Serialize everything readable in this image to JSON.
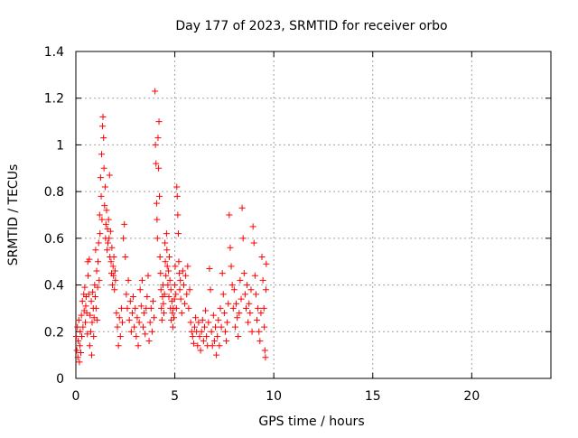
{
  "chart_data": {
    "type": "scatter",
    "title": "Day 177 of 2023, SRMTID for receiver orbo",
    "xlabel": "GPS time / hours",
    "ylabel": "SRMTID / TECUs",
    "xlim": [
      0,
      24
    ],
    "ylim": [
      0,
      1.4
    ],
    "xticks": [
      0,
      5,
      10,
      15,
      20
    ],
    "xtick_labels": [
      "0",
      "5",
      "10",
      "15",
      "20"
    ],
    "yticks": [
      0,
      0.2,
      0.4,
      0.6,
      0.8,
      1.0,
      1.2,
      1.4
    ],
    "ytick_labels": [
      "0",
      "0.2",
      "0.4",
      "0.6",
      "0.8",
      "1",
      "1.2",
      "1.4"
    ],
    "grid": true,
    "marker": "plus",
    "color": "#ff0000",
    "series": [
      {
        "name": "SRMTID",
        "points": [
          [
            0.02,
            0.18
          ],
          [
            0.05,
            0.12
          ],
          [
            0.08,
            0.22
          ],
          [
            0.1,
            0.09
          ],
          [
            0.12,
            0.16
          ],
          [
            0.15,
            0.25
          ],
          [
            0.18,
            0.07
          ],
          [
            0.2,
            0.14
          ],
          [
            0.22,
            0.2
          ],
          [
            0.25,
            0.11
          ],
          [
            0.28,
            0.27
          ],
          [
            0.3,
            0.18
          ],
          [
            0.33,
            0.33
          ],
          [
            0.36,
            0.22
          ],
          [
            0.4,
            0.36
          ],
          [
            0.42,
            0.29
          ],
          [
            0.45,
            0.39
          ],
          [
            0.48,
            0.24
          ],
          [
            0.5,
            0.31
          ],
          [
            0.52,
            0.35
          ],
          [
            0.55,
            0.28
          ],
          [
            0.58,
            0.19
          ],
          [
            0.6,
            0.5
          ],
          [
            0.62,
            0.44
          ],
          [
            0.65,
            0.36
          ],
          [
            0.68,
            0.51
          ],
          [
            0.7,
            0.14
          ],
          [
            0.72,
            0.27
          ],
          [
            0.75,
            0.2
          ],
          [
            0.78,
            0.33
          ],
          [
            0.8,
            0.1
          ],
          [
            0.82,
            0.24
          ],
          [
            0.85,
            0.37
          ],
          [
            0.88,
            0.3
          ],
          [
            0.9,
            0.18
          ],
          [
            0.92,
            0.26
          ],
          [
            0.95,
            0.4
          ],
          [
            0.98,
            0.35
          ],
          [
            1.0,
            0.55
          ],
          [
            1.02,
            0.3
          ],
          [
            1.05,
            0.46
          ],
          [
            1.08,
            0.25
          ],
          [
            1.1,
            0.39
          ],
          [
            1.12,
            0.5
          ],
          [
            1.15,
            0.58
          ],
          [
            1.18,
            0.42
          ],
          [
            1.2,
            0.7
          ],
          [
            1.22,
            0.62
          ],
          [
            1.25,
            0.86
          ],
          [
            1.28,
            0.78
          ],
          [
            1.3,
            0.96
          ],
          [
            1.32,
            0.68
          ],
          [
            1.35,
            1.08
          ],
          [
            1.37,
            1.12
          ],
          [
            1.4,
            1.03
          ],
          [
            1.42,
            0.9
          ],
          [
            1.45,
            0.74
          ],
          [
            1.48,
            0.82
          ],
          [
            1.5,
            0.6
          ],
          [
            1.52,
            0.66
          ],
          [
            1.55,
            0.72
          ],
          [
            1.58,
            0.55
          ],
          [
            1.6,
            0.64
          ],
          [
            1.62,
            0.58
          ],
          [
            1.65,
            0.68
          ],
          [
            1.68,
            0.6
          ],
          [
            1.7,
            0.87
          ],
          [
            1.72,
            0.52
          ],
          [
            1.75,
            0.63
          ],
          [
            1.78,
            0.5
          ],
          [
            1.8,
            0.45
          ],
          [
            1.82,
            0.56
          ],
          [
            1.85,
            0.4
          ],
          [
            1.88,
            0.48
          ],
          [
            1.9,
            0.44
          ],
          [
            1.92,
            0.52
          ],
          [
            1.95,
            0.38
          ],
          [
            1.98,
            0.46
          ],
          [
            2.0,
            0.42
          ],
          [
            2.05,
            0.28
          ],
          [
            2.1,
            0.22
          ],
          [
            2.15,
            0.14
          ],
          [
            2.2,
            0.26
          ],
          [
            2.25,
            0.18
          ],
          [
            2.3,
            0.3
          ],
          [
            2.35,
            0.24
          ],
          [
            2.4,
            0.6
          ],
          [
            2.45,
            0.66
          ],
          [
            2.5,
            0.52
          ],
          [
            2.55,
            0.36
          ],
          [
            2.6,
            0.3
          ],
          [
            2.65,
            0.42
          ],
          [
            2.7,
            0.25
          ],
          [
            2.75,
            0.33
          ],
          [
            2.8,
            0.2
          ],
          [
            2.85,
            0.28
          ],
          [
            2.9,
            0.35
          ],
          [
            2.95,
            0.22
          ],
          [
            3.0,
            0.3
          ],
          [
            3.05,
            0.18
          ],
          [
            3.1,
            0.26
          ],
          [
            3.15,
            0.14
          ],
          [
            3.2,
            0.24
          ],
          [
            3.25,
            0.38
          ],
          [
            3.3,
            0.31
          ],
          [
            3.35,
            0.42
          ],
          [
            3.4,
            0.22
          ],
          [
            3.45,
            0.28
          ],
          [
            3.5,
            0.19
          ],
          [
            3.55,
            0.3
          ],
          [
            3.6,
            0.35
          ],
          [
            3.65,
            0.44
          ],
          [
            3.7,
            0.16
          ],
          [
            3.75,
            0.24
          ],
          [
            3.8,
            0.3
          ],
          [
            3.85,
            0.2
          ],
          [
            3.9,
            0.33
          ],
          [
            3.95,
            0.26
          ],
          [
            4.0,
            1.23
          ],
          [
            4.02,
            1.0
          ],
          [
            4.05,
            0.92
          ],
          [
            4.08,
            0.75
          ],
          [
            4.1,
            0.68
          ],
          [
            4.12,
            0.6
          ],
          [
            4.15,
            1.03
          ],
          [
            4.18,
            0.9
          ],
          [
            4.2,
            1.1
          ],
          [
            4.22,
            0.78
          ],
          [
            4.25,
            0.52
          ],
          [
            4.28,
            0.45
          ],
          [
            4.3,
            0.38
          ],
          [
            4.32,
            0.3
          ],
          [
            4.35,
            0.25
          ],
          [
            4.38,
            0.35
          ],
          [
            4.4,
            0.4
          ],
          [
            4.42,
            0.32
          ],
          [
            4.45,
            0.28
          ],
          [
            4.48,
            0.36
          ],
          [
            4.5,
            0.58
          ],
          [
            4.52,
            0.5
          ],
          [
            4.55,
            0.44
          ],
          [
            4.58,
            0.62
          ],
          [
            4.6,
            0.55
          ],
          [
            4.62,
            0.48
          ],
          [
            4.65,
            0.4
          ],
          [
            4.68,
            0.46
          ],
          [
            4.7,
            0.35
          ],
          [
            4.72,
            0.52
          ],
          [
            4.75,
            0.42
          ],
          [
            4.78,
            0.3
          ],
          [
            4.8,
            0.38
          ],
          [
            4.82,
            0.25
          ],
          [
            4.85,
            0.33
          ],
          [
            4.88,
            0.28
          ],
          [
            4.9,
            0.22
          ],
          [
            4.92,
            0.3
          ],
          [
            4.95,
            0.26
          ],
          [
            4.98,
            0.34
          ],
          [
            5.0,
            0.4
          ],
          [
            5.02,
            0.48
          ],
          [
            5.05,
            0.36
          ],
          [
            5.08,
            0.3
          ],
          [
            5.1,
            0.82
          ],
          [
            5.12,
            0.78
          ],
          [
            5.15,
            0.7
          ],
          [
            5.18,
            0.62
          ],
          [
            5.2,
            0.5
          ],
          [
            5.22,
            0.45
          ],
          [
            5.25,
            0.38
          ],
          [
            5.28,
            0.42
          ],
          [
            5.3,
            0.34
          ],
          [
            5.35,
            0.28
          ],
          [
            5.4,
            0.46
          ],
          [
            5.45,
            0.4
          ],
          [
            5.5,
            0.32
          ],
          [
            5.55,
            0.44
          ],
          [
            5.6,
            0.36
          ],
          [
            5.65,
            0.48
          ],
          [
            5.7,
            0.3
          ],
          [
            5.75,
            0.38
          ],
          [
            5.8,
            0.24
          ],
          [
            5.85,
            0.2
          ],
          [
            5.9,
            0.18
          ],
          [
            5.95,
            0.15
          ],
          [
            6.0,
            0.22
          ],
          [
            6.05,
            0.26
          ],
          [
            6.1,
            0.2
          ],
          [
            6.15,
            0.14
          ],
          [
            6.2,
            0.24
          ],
          [
            6.25,
            0.18
          ],
          [
            6.3,
            0.12
          ],
          [
            6.35,
            0.2
          ],
          [
            6.4,
            0.25
          ],
          [
            6.45,
            0.16
          ],
          [
            6.5,
            0.22
          ],
          [
            6.55,
            0.29
          ],
          [
            6.6,
            0.18
          ],
          [
            6.65,
            0.14
          ],
          [
            6.7,
            0.24
          ],
          [
            6.75,
            0.47
          ],
          [
            6.8,
            0.38
          ],
          [
            6.85,
            0.2
          ],
          [
            6.9,
            0.14
          ],
          [
            6.95,
            0.27
          ],
          [
            7.0,
            0.16
          ],
          [
            7.05,
            0.22
          ],
          [
            7.1,
            0.1
          ],
          [
            7.15,
            0.18
          ],
          [
            7.2,
            0.25
          ],
          [
            7.25,
            0.14
          ],
          [
            7.3,
            0.3
          ],
          [
            7.35,
            0.22
          ],
          [
            7.4,
            0.45
          ],
          [
            7.45,
            0.36
          ],
          [
            7.5,
            0.28
          ],
          [
            7.55,
            0.2
          ],
          [
            7.6,
            0.16
          ],
          [
            7.65,
            0.24
          ],
          [
            7.7,
            0.32
          ],
          [
            7.75,
            0.7
          ],
          [
            7.8,
            0.56
          ],
          [
            7.85,
            0.48
          ],
          [
            7.9,
            0.4
          ],
          [
            7.95,
            0.3
          ],
          [
            8.0,
            0.38
          ],
          [
            8.05,
            0.22
          ],
          [
            8.1,
            0.32
          ],
          [
            8.15,
            0.26
          ],
          [
            8.2,
            0.18
          ],
          [
            8.25,
            0.28
          ],
          [
            8.3,
            0.42
          ],
          [
            8.35,
            0.34
          ],
          [
            8.4,
            0.73
          ],
          [
            8.45,
            0.6
          ],
          [
            8.5,
            0.45
          ],
          [
            8.55,
            0.36
          ],
          [
            8.6,
            0.3
          ],
          [
            8.65,
            0.4
          ],
          [
            8.7,
            0.24
          ],
          [
            8.75,
            0.32
          ],
          [
            8.8,
            0.28
          ],
          [
            8.85,
            0.38
          ],
          [
            8.9,
            0.2
          ],
          [
            8.95,
            0.65
          ],
          [
            9.0,
            0.58
          ],
          [
            9.05,
            0.44
          ],
          [
            9.1,
            0.36
          ],
          [
            9.15,
            0.25
          ],
          [
            9.2,
            0.3
          ],
          [
            9.25,
            0.2
          ],
          [
            9.3,
            0.16
          ],
          [
            9.35,
            0.28
          ],
          [
            9.4,
            0.52
          ],
          [
            9.45,
            0.42
          ],
          [
            9.5,
            0.3
          ],
          [
            9.52,
            0.22
          ],
          [
            9.55,
            0.12
          ],
          [
            9.58,
            0.09
          ],
          [
            9.6,
            0.38
          ],
          [
            9.62,
            0.49
          ]
        ]
      }
    ]
  }
}
